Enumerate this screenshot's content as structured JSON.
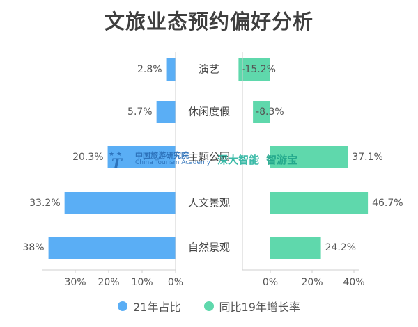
{
  "title": "文旅业态预约偏好分析",
  "chart_data": {
    "type": "bar",
    "orientation": "horizontal-butterfly",
    "categories": [
      "演艺",
      "休闲度假",
      "主题公园",
      "人文景观",
      "自然景观"
    ],
    "series": [
      {
        "name": "21年占比",
        "color": "#5aaef5",
        "values": [
          2.8,
          5.7,
          20.3,
          33.2,
          38
        ],
        "labels": [
          "2.8%",
          "5.7%",
          "20.3%",
          "33.2%",
          "38%"
        ],
        "xlim": [
          0,
          40
        ],
        "ticks": [
          "30%",
          "20%",
          "10%",
          "0%"
        ]
      },
      {
        "name": "同比19年增长率",
        "color": "#5fd8ac",
        "values": [
          -15.2,
          -8.3,
          37.1,
          46.7,
          24.2
        ],
        "labels": [
          "-15.2%",
          "-8.3%",
          "37.1%",
          "46.7%",
          "24.2%"
        ],
        "xlim": [
          -20,
          50
        ],
        "ticks": [
          "0%",
          "20%",
          "40%"
        ]
      }
    ]
  },
  "watermark": {
    "org_cn": "中国旅游研究院",
    "org_en": "China Tourism Academy",
    "brand1": "深大智能",
    "brand2": "智游宝"
  }
}
